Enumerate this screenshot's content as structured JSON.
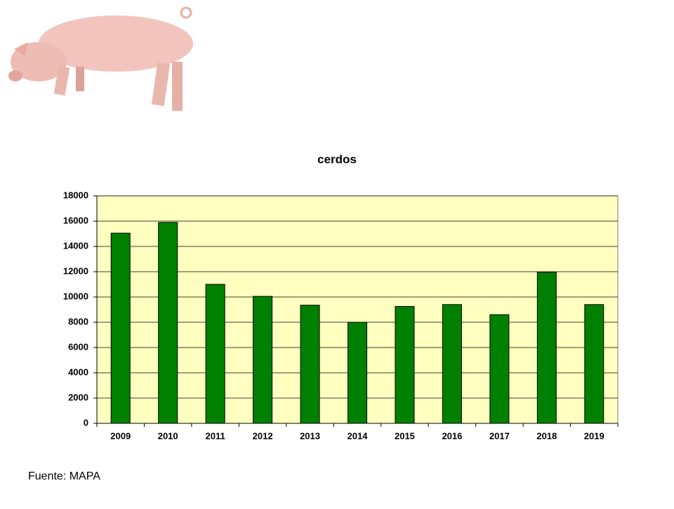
{
  "chart_data": {
    "type": "bar",
    "title": "cerdos",
    "categories": [
      "2009",
      "2010",
      "2011",
      "2012",
      "2013",
      "2014",
      "2015",
      "2016",
      "2017",
      "2018",
      "2019"
    ],
    "values": [
      15050,
      15900,
      11000,
      10050,
      9350,
      8000,
      9250,
      9400,
      8600,
      11950,
      9400
    ],
    "color": "#008000",
    "ylim": [
      0,
      18000
    ],
    "yticks": [
      0,
      2000,
      4000,
      6000,
      8000,
      10000,
      12000,
      14000,
      16000,
      18000
    ],
    "grid": true
  },
  "source": "Fuente: MAPA"
}
